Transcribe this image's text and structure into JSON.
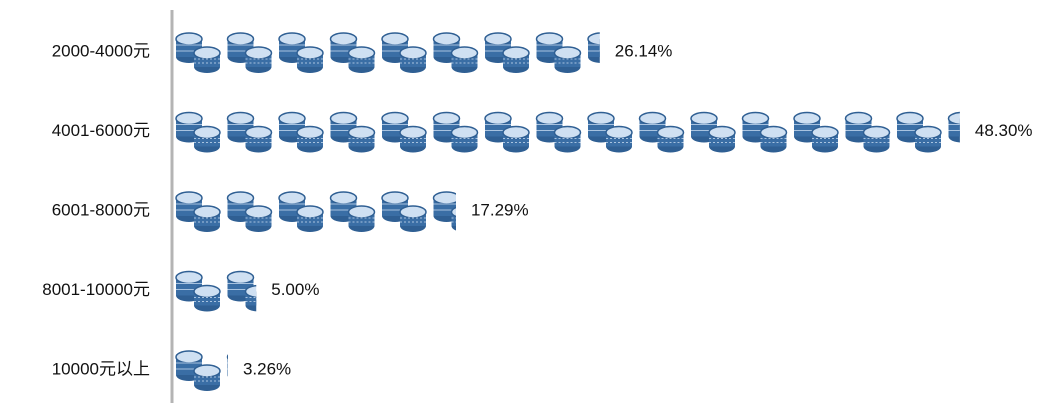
{
  "chart_data": {
    "type": "bar",
    "orientation": "horizontal",
    "categories": [
      "2000-4000元",
      "4001-6000元",
      "6001-8000元",
      "8001-10000元",
      "10000元以上"
    ],
    "values": [
      26.14,
      48.3,
      17.29,
      5.0,
      3.26
    ],
    "value_labels": [
      "26.14%",
      "48.30%",
      "17.29%",
      "5.00%",
      "3.26%"
    ],
    "unit": "%",
    "title": "",
    "xlabel": "",
    "ylabel": "",
    "xlim": [
      0,
      50
    ],
    "grid": false,
    "legend": "none",
    "bar_style": "stacked-coin pictograph",
    "colors": {
      "coin": "#3a6ea5",
      "coin_light": "#a8c3e0",
      "axis": "#b4b4b4",
      "text": "#111111"
    }
  }
}
